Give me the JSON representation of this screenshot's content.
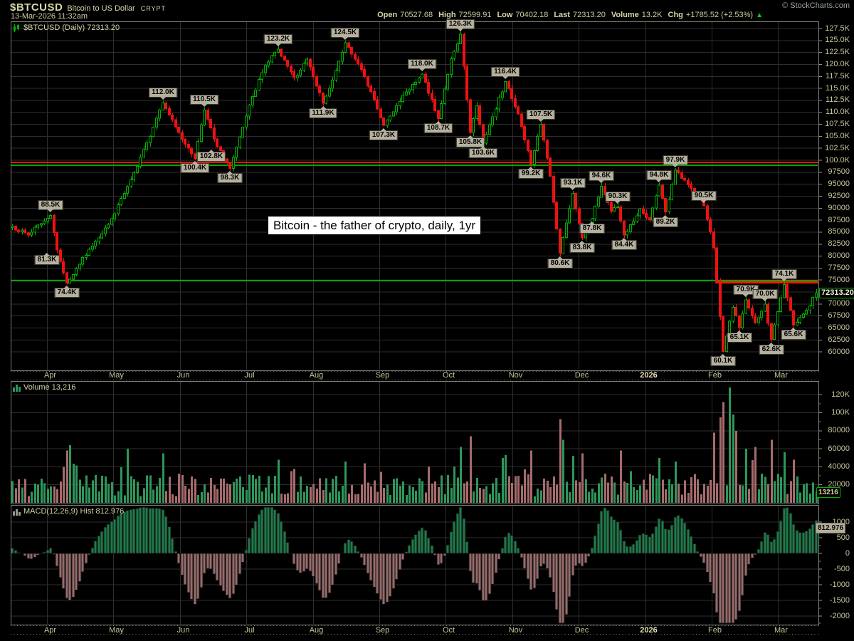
{
  "header": {
    "symbol": "$BTCUSD",
    "name": "Bitcoin to US Dollar",
    "exchange": "CRYPT",
    "datetime": "13-Mar-2026 11:32am",
    "copyright": "© StockCharts.com",
    "quote": [
      {
        "label": "Open",
        "value": "70527.68"
      },
      {
        "label": "High",
        "value": "72599.91"
      },
      {
        "label": "Low",
        "value": "70402.18"
      },
      {
        "label": "Last",
        "value": "72313.20"
      },
      {
        "label": "Volume",
        "value": "13.2K"
      },
      {
        "label": "Chg",
        "value": "+1785.52 (+2.53%)"
      }
    ],
    "change_direction": "up",
    "up_arrow": "▲"
  },
  "main_panel": {
    "icon": "candlestick-icon",
    "title": "$BTCUSD (Daily) 72313.20",
    "last_price_badge": "72313.20",
    "textbox": "Bitcoin - the father of crypto, daily, 1yr",
    "y_ticks": [
      "127.5K",
      "125.0K",
      "122.5K",
      "120.0K",
      "117.5K",
      "115.0K",
      "112.5K",
      "110.0K",
      "107.5K",
      "105.0K",
      "102.5K",
      "100.0K",
      "97500",
      "95000",
      "92500",
      "90000",
      "87500",
      "85000",
      "82500",
      "80000",
      "77500",
      "75000",
      "72500",
      "70000",
      "67500",
      "65000",
      "62500",
      "60000"
    ]
  },
  "volume_panel": {
    "icon": "bar-chart-icon",
    "title": "Volume 13,216",
    "badge": "13216",
    "y_ticks": [
      [
        "120K",
        120000
      ],
      [
        "100K",
        100000
      ],
      [
        "80000",
        80000
      ],
      [
        "60000",
        60000
      ],
      [
        "40000",
        40000
      ],
      [
        "20000",
        20000
      ]
    ]
  },
  "macd_panel": {
    "icon": "histogram-icon",
    "title": "MACD(12,26,9) Hist 812.976",
    "badge": "812.976",
    "y_ticks": [
      [
        "1000",
        1000
      ],
      [
        "500",
        500
      ],
      [
        "0",
        0
      ],
      [
        "-500",
        -500
      ],
      [
        "-1000",
        -1000
      ],
      [
        "-1500",
        -1500
      ],
      [
        "-2000",
        -2000
      ]
    ]
  },
  "x_axis": {
    "months": [
      "Apr",
      "May",
      "Jun",
      "Jul",
      "Aug",
      "Sep",
      "Oct",
      "Nov",
      "Dec",
      "2026",
      "Feb",
      "Mar"
    ]
  },
  "colors": {
    "background": "#000000",
    "text": "#cfcba2",
    "text_bright": "#dcd8ae",
    "grid": "#2e2e2e",
    "panel_border": "#7e7e7e",
    "tick": "#9a9680",
    "dotted_tick_row": "#84816b",
    "candle_up": "#00b200",
    "candle_down": "#ee1111",
    "volume_up": "#2e965a",
    "volume_down": "#a66b6b",
    "macd_up": "#1e7b4a",
    "macd_down": "#976b6b",
    "line_red": "#ff1500",
    "line_green": "#00a800",
    "callout_bg": "#b6b19e",
    "badge_green_border": "#00b300",
    "change_up": "#00cc33"
  },
  "chart_data": {
    "type": "candlestick",
    "title": "$BTCUSD (Daily)",
    "symbol": "$BTCUSD",
    "timeframe": "Daily",
    "range": "1 year (Apr 2025 - Mar 2026)",
    "days": 252,
    "last_quote": {
      "open": 70527.68,
      "high": 72599.91,
      "low": 70402.18,
      "last": 72313.2,
      "volume": 13216,
      "change": 1785.52,
      "change_pct": 2.53,
      "macd_hist": 812.976
    },
    "y_axis": {
      "min": 60000,
      "max": 127500,
      "tick_step": 2500
    },
    "x_axis_months": [
      "Apr",
      "May",
      "Jun",
      "Jul",
      "Aug",
      "Sep",
      "Oct",
      "Nov",
      "Dec",
      "2026",
      "Feb",
      "Mar"
    ],
    "price_anchors": [
      [
        0,
        86000
      ],
      [
        5,
        84500
      ],
      [
        9,
        87000
      ],
      [
        12,
        88500
      ],
      [
        14,
        81300
      ],
      [
        17,
        74400
      ],
      [
        23,
        80500
      ],
      [
        30,
        86500
      ],
      [
        36,
        94500
      ],
      [
        42,
        103500
      ],
      [
        47,
        112000
      ],
      [
        53,
        104500
      ],
      [
        57,
        100400
      ],
      [
        60,
        110500
      ],
      [
        64,
        102800
      ],
      [
        68,
        98300
      ],
      [
        74,
        111500
      ],
      [
        79,
        120000
      ],
      [
        83,
        123200
      ],
      [
        88,
        117000
      ],
      [
        92,
        121000
      ],
      [
        97,
        111900
      ],
      [
        101,
        118500
      ],
      [
        104,
        124500
      ],
      [
        110,
        117500
      ],
      [
        116,
        107300
      ],
      [
        122,
        113500
      ],
      [
        128,
        118000
      ],
      [
        133,
        108700
      ],
      [
        137,
        121000
      ],
      [
        140,
        126300
      ],
      [
        143,
        105800
      ],
      [
        145,
        111500
      ],
      [
        147,
        103600
      ],
      [
        154,
        116400
      ],
      [
        158,
        109500
      ],
      [
        162,
        99200
      ],
      [
        165,
        107500
      ],
      [
        168,
        96500
      ],
      [
        171,
        80600
      ],
      [
        175,
        93100
      ],
      [
        178,
        83800
      ],
      [
        181,
        87800
      ],
      [
        184,
        94600
      ],
      [
        187,
        89500
      ],
      [
        189,
        90300
      ],
      [
        191,
        84400
      ],
      [
        196,
        89500
      ],
      [
        199,
        87500
      ],
      [
        202,
        94800
      ],
      [
        204,
        89200
      ],
      [
        207,
        97900
      ],
      [
        212,
        94000
      ],
      [
        216,
        90500
      ],
      [
        219,
        82000
      ],
      [
        222,
        60100
      ],
      [
        225,
        69500
      ],
      [
        227,
        65100
      ],
      [
        229,
        70900
      ],
      [
        232,
        66000
      ],
      [
        235,
        70000
      ],
      [
        237,
        62600
      ],
      [
        241,
        74100
      ],
      [
        244,
        65600
      ],
      [
        248,
        68500
      ],
      [
        251,
        72313
      ]
    ],
    "pivot_labels": [
      {
        "label": "88.5K",
        "day": 12,
        "price": 88500,
        "pos": "above"
      },
      {
        "label": "81.3K",
        "day": 14,
        "price": 81300,
        "pos": "below",
        "dx": -14
      },
      {
        "label": "74.4K",
        "day": 17,
        "price": 74400,
        "pos": "below"
      },
      {
        "label": "112.0K",
        "day": 47,
        "price": 112000,
        "pos": "above"
      },
      {
        "label": "100.4K",
        "day": 57,
        "price": 100400,
        "pos": "below"
      },
      {
        "label": "110.5K",
        "day": 60,
        "price": 110500,
        "pos": "above"
      },
      {
        "label": "102.8K",
        "day": 64,
        "price": 102800,
        "pos": "below",
        "dx": -8
      },
      {
        "label": "98.3K",
        "day": 68,
        "price": 98300,
        "pos": "below"
      },
      {
        "label": "123.2K",
        "day": 83,
        "price": 123200,
        "pos": "above"
      },
      {
        "label": "111.9K",
        "day": 97,
        "price": 111900,
        "pos": "below"
      },
      {
        "label": "124.5K",
        "day": 104,
        "price": 124500,
        "pos": "above"
      },
      {
        "label": "107.3K",
        "day": 116,
        "price": 107300,
        "pos": "below"
      },
      {
        "label": "118.0K",
        "day": 128,
        "price": 118000,
        "pos": "above"
      },
      {
        "label": "108.7K",
        "day": 133,
        "price": 108700,
        "pos": "below"
      },
      {
        "label": "126.3K",
        "day": 140,
        "price": 126300,
        "pos": "above"
      },
      {
        "label": "105.8K",
        "day": 143,
        "price": 105800,
        "pos": "below"
      },
      {
        "label": "103.6K",
        "day": 147,
        "price": 103600,
        "pos": "below"
      },
      {
        "label": "116.4K",
        "day": 154,
        "price": 116400,
        "pos": "above"
      },
      {
        "label": "99.2K",
        "day": 162,
        "price": 99200,
        "pos": "below"
      },
      {
        "label": "107.5K",
        "day": 165,
        "price": 107500,
        "pos": "above"
      },
      {
        "label": "80.6K",
        "day": 171,
        "price": 80600,
        "pos": "below"
      },
      {
        "label": "93.1K",
        "day": 175,
        "price": 93100,
        "pos": "above"
      },
      {
        "label": "83.8K",
        "day": 178,
        "price": 83800,
        "pos": "below"
      },
      {
        "label": "87.8K",
        "day": 181,
        "price": 87800,
        "pos": "below"
      },
      {
        "label": "94.6K",
        "day": 184,
        "price": 94600,
        "pos": "above"
      },
      {
        "label": "90.3K",
        "day": 189,
        "price": 90300,
        "pos": "above"
      },
      {
        "label": "84.4K",
        "day": 191,
        "price": 84400,
        "pos": "below"
      },
      {
        "label": "94.8K",
        "day": 202,
        "price": 94800,
        "pos": "above"
      },
      {
        "label": "89.2K",
        "day": 204,
        "price": 89200,
        "pos": "below"
      },
      {
        "label": "97.9K",
        "day": 207,
        "price": 97900,
        "pos": "above"
      },
      {
        "label": "90.5K",
        "day": 216,
        "price": 90500,
        "pos": "above"
      },
      {
        "label": "60.1K",
        "day": 222,
        "price": 60100,
        "pos": "below"
      },
      {
        "label": "65.1K",
        "day": 227,
        "price": 65100,
        "pos": "below"
      },
      {
        "label": "70.9K",
        "day": 229,
        "price": 70900,
        "pos": "above"
      },
      {
        "label": "70.0K",
        "day": 235,
        "price": 70000,
        "pos": "above"
      },
      {
        "label": "62.6K",
        "day": 237,
        "price": 62600,
        "pos": "below"
      },
      {
        "label": "74.1K",
        "day": 241,
        "price": 74100,
        "pos": "above"
      },
      {
        "label": "65.6K",
        "day": 244,
        "price": 65600,
        "pos": "below"
      }
    ],
    "horizontal_lines": [
      {
        "color": "line_red",
        "price": 99550,
        "from_day": 0,
        "to_day": 252,
        "width": 2
      },
      {
        "color": "line_green",
        "price": 98950,
        "from_day": 0,
        "to_day": 252,
        "width": 2
      },
      {
        "color": "line_green",
        "price": 74900,
        "from_day": 0,
        "to_day": 252,
        "width": 2
      },
      {
        "color": "line_red",
        "price": 74550,
        "from_day": 220,
        "to_day": 252,
        "width": 3
      }
    ],
    "volume_axis": {
      "min": 0,
      "max": 130000,
      "tick_step": 20000
    },
    "volume_last": 13216,
    "volume_spikes": {
      "16": 40000,
      "17": 58000,
      "18": 64000,
      "36": 60000,
      "47": 55000,
      "83": 48000,
      "104": 46000,
      "140": 62000,
      "143": 74000,
      "153": 50000,
      "162": 58000,
      "171": 93000,
      "172": 70000,
      "175": 52000,
      "178": 55000,
      "190": 58000,
      "202": 50000,
      "207": 46000,
      "219": 78000,
      "221": 95000,
      "222": 112000,
      "224": 128000,
      "225": 98000,
      "226": 80000,
      "229": 60000,
      "232": 62000,
      "237": 70000,
      "241": 56000,
      "244": 48000,
      "251": 13216
    },
    "macd_axis": {
      "min": -2500,
      "max": 1250,
      "tick_step": 500,
      "params": "12,26,9",
      "last_hist": 812.976
    }
  }
}
